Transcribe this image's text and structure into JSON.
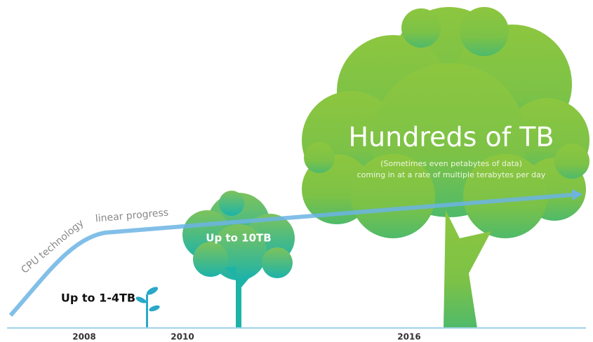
{
  "curve": {
    "labels": [
      "CPU technology",
      "linear progress"
    ]
  },
  "trees": [
    {
      "label": "Up to 1-4TB"
    },
    {
      "label": "Up to 10TB"
    },
    {
      "label": "Hundreds of TB",
      "notes": [
        "(Sometimes even petabytes of data)",
        "coming in at a rate of multiple terabytes per day"
      ]
    }
  ],
  "timeline": [
    "2008",
    "2010",
    "2016"
  ]
}
